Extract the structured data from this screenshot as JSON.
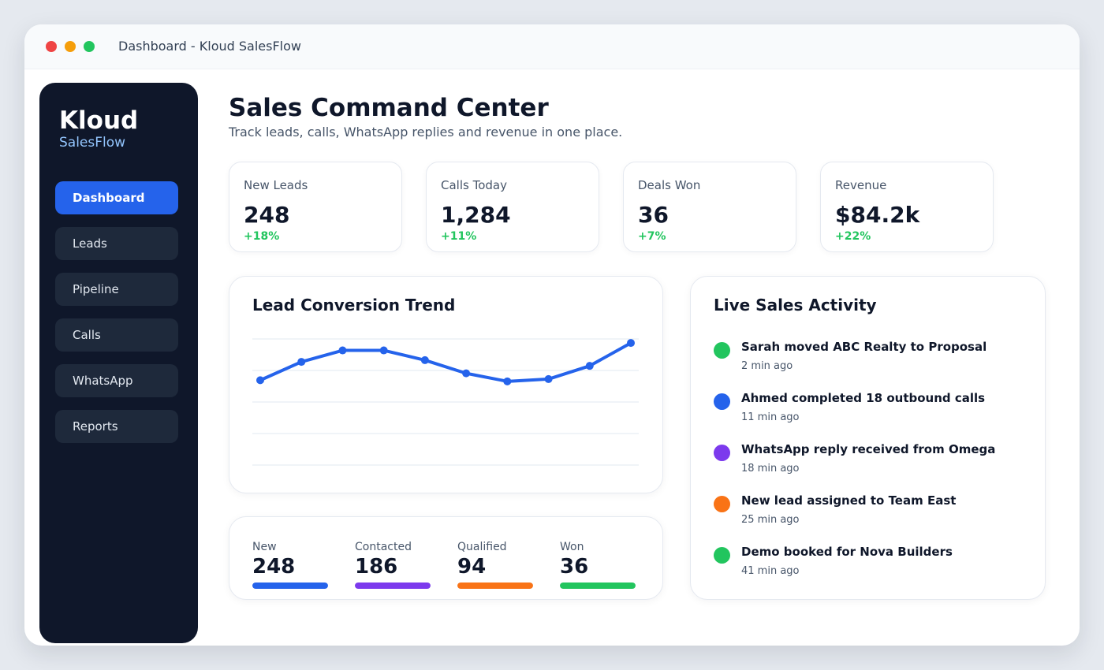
{
  "window": {
    "title": "Dashboard - Kloud SalesFlow"
  },
  "sidebar": {
    "brand": "Kloud",
    "brand_sub": "SalesFlow",
    "items": [
      {
        "label": "Dashboard",
        "active": true
      },
      {
        "label": "Leads",
        "active": false
      },
      {
        "label": "Pipeline",
        "active": false
      },
      {
        "label": "Calls",
        "active": false
      },
      {
        "label": "WhatsApp",
        "active": false
      },
      {
        "label": "Reports",
        "active": false
      }
    ]
  },
  "header": {
    "title": "Sales Command Center",
    "subtitle": "Track leads, calls, WhatsApp replies and revenue in one place."
  },
  "stats": [
    {
      "label": "New Leads",
      "value": "248",
      "delta": "+18%"
    },
    {
      "label": "Calls Today",
      "value": "1,284",
      "delta": "+11%"
    },
    {
      "label": "Deals Won",
      "value": "36",
      "delta": "+7%"
    },
    {
      "label": "Revenue",
      "value": "$84.2k",
      "delta": "+22%"
    }
  ],
  "trend": {
    "title": "Lead Conversion Trend"
  },
  "chart_data": {
    "type": "line",
    "title": "Lead Conversion Trend",
    "x": [
      1,
      2,
      3,
      4,
      5,
      6,
      7,
      8,
      9,
      10
    ],
    "series": [
      {
        "values": [
          74,
          90,
          100,
          100,
          91.5,
          80,
          73,
          75,
          86.5,
          106.5
        ]
      }
    ],
    "ylim": [
      0,
      110
    ],
    "grid": true,
    "color": "#2563eb"
  },
  "funnel": [
    {
      "label": "New",
      "value": "248",
      "color": "#2563eb",
      "fill": 1.0
    },
    {
      "label": "Contacted",
      "value": "186",
      "color": "#7c3aed",
      "fill": 1.0
    },
    {
      "label": "Qualified",
      "value": "94",
      "color": "#f97316",
      "fill": 1.0
    },
    {
      "label": "Won",
      "value": "36",
      "color": "#22c55e",
      "fill": 1.0
    }
  ],
  "activity": {
    "title": "Live Sales Activity",
    "items": [
      {
        "text": "Sarah moved ABC Realty to Proposal",
        "time": "2 min ago",
        "color": "#22c55e"
      },
      {
        "text": "Ahmed completed 18 outbound calls",
        "time": "11 min ago",
        "color": "#2563eb"
      },
      {
        "text": "WhatsApp reply received from Omega",
        "time": "18 min ago",
        "color": "#7c3aed"
      },
      {
        "text": "New lead assigned to Team East",
        "time": "25 min ago",
        "color": "#f97316"
      },
      {
        "text": "Demo booked for Nova Builders",
        "time": "41 min ago",
        "color": "#22c55e"
      }
    ]
  }
}
